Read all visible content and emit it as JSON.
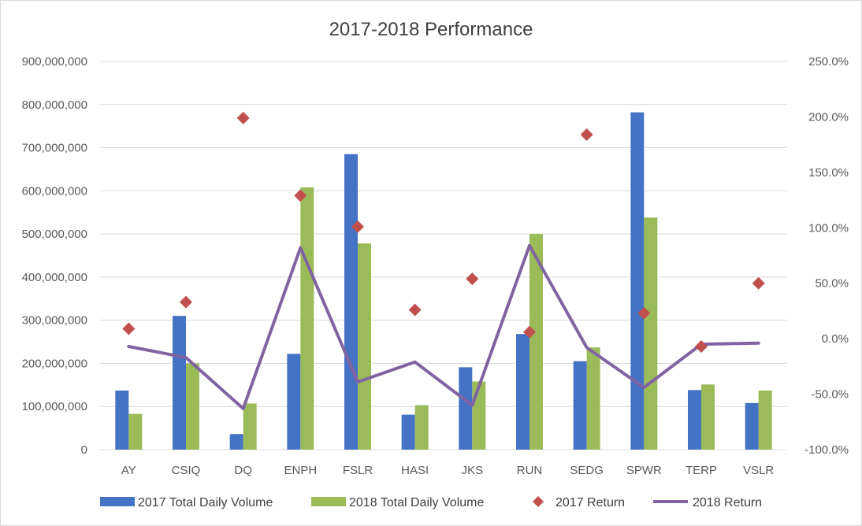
{
  "chart_data": {
    "type": "bar",
    "title": "2017-2018 Performance",
    "categories": [
      "AY",
      "CSIQ",
      "DQ",
      "ENPH",
      "FSLR",
      "HASI",
      "JKS",
      "RUN",
      "SEDG",
      "SPWR",
      "TERP",
      "VSLR"
    ],
    "y_left": {
      "ylim": [
        0,
        900000000
      ],
      "ticks": [
        "0",
        "100,000,000",
        "200,000,000",
        "300,000,000",
        "400,000,000",
        "500,000,000",
        "600,000,000",
        "700,000,000",
        "800,000,000",
        "900,000,000"
      ]
    },
    "y_right": {
      "ylim": [
        -100,
        250
      ],
      "ticks": [
        "-100.0%",
        "-50.0%",
        "0.0%",
        "50.0%",
        "100.0%",
        "150.0%",
        "200.0%",
        "250.0%"
      ]
    },
    "grid": true,
    "legend_position": "bottom",
    "series": [
      {
        "name": "2017 Total Daily Volume",
        "type": "bar",
        "axis": "left",
        "color": "#4472c4",
        "values": [
          137000000,
          310000000,
          36000000,
          222000000,
          685000000,
          81000000,
          191000000,
          268000000,
          205000000,
          782000000,
          138000000,
          108000000
        ]
      },
      {
        "name": "2018 Total Daily Volume",
        "type": "bar",
        "axis": "left",
        "color": "#9bbb59",
        "values": [
          83000000,
          200000000,
          107000000,
          608000000,
          478000000,
          103000000,
          158000000,
          500000000,
          237000000,
          538000000,
          151000000,
          137000000
        ]
      },
      {
        "name": "2017 Return",
        "type": "scatter",
        "axis": "right",
        "color": "#c0504d",
        "marker": "diamond",
        "values": [
          9,
          33,
          199,
          129,
          101,
          26,
          54,
          6,
          184,
          23,
          -7,
          50
        ]
      },
      {
        "name": "2018 Return",
        "type": "line",
        "axis": "right",
        "color": "#8064a2",
        "values": [
          -7,
          -17,
          -63,
          82,
          -39,
          -21,
          -60,
          84,
          -8,
          -44,
          -5,
          -4
        ]
      }
    ]
  }
}
